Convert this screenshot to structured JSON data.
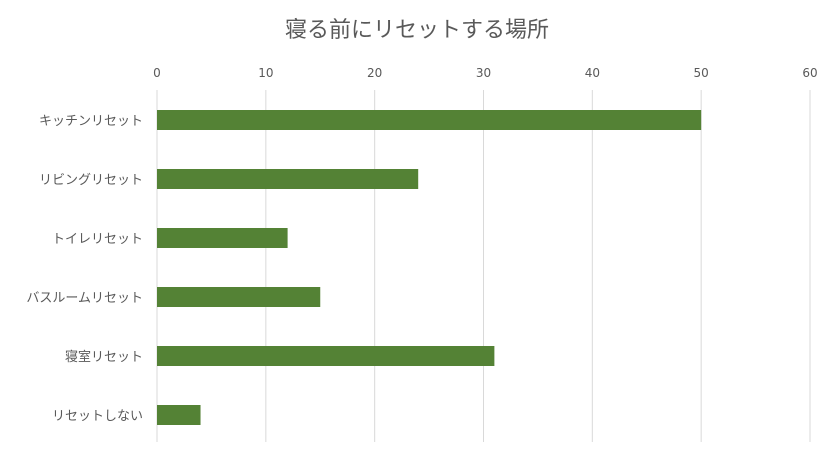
{
  "chart_data": {
    "type": "bar",
    "orientation": "horizontal",
    "title": "寝る前にリセットする場所",
    "categories": [
      "キッチンリセット",
      "リビングリセット",
      "トイレリセット",
      "バスルームリセット",
      "寝室リセット",
      "リセットしない"
    ],
    "values": [
      50,
      24,
      12,
      15,
      31,
      4
    ],
    "xlim": [
      0,
      60
    ],
    "xticks": [
      0,
      10,
      20,
      30,
      40,
      50,
      60
    ],
    "x_axis_position": "top",
    "grid": true,
    "legend": "none",
    "bar_color": "#548235"
  }
}
